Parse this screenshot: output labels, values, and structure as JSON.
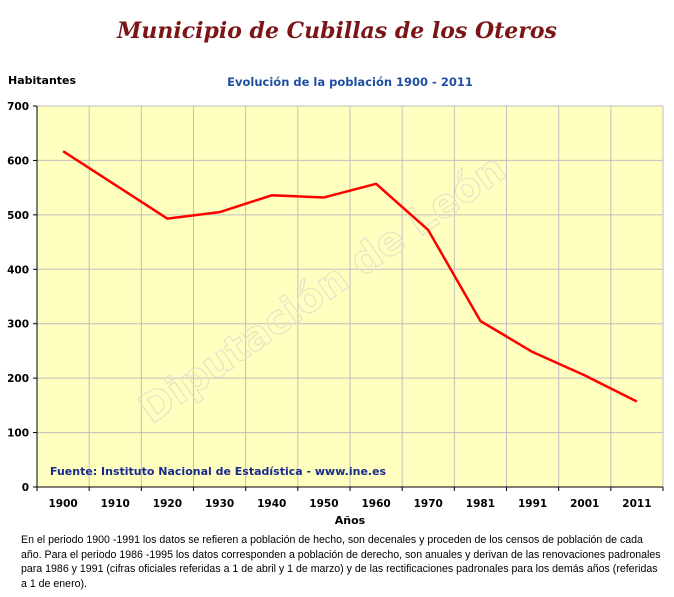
{
  "page": {
    "title": "Municipio de Cubillas de los Oteros",
    "footnote": "En el periodo 1900 -1991 los datos se refieren a población de hecho, son decenales y proceden de los censos de población de cada año. Para el periodo 1986 -1995 los datos corresponden a población de derecho, son anuales y derivan de las renovaciones padronales para 1986 y 1991 (cifras oficiales referidas a 1 de abril y 1 de marzo) y de las rectificaciones padronales para los demás años (referidas a 1 de enero)."
  },
  "chart_data": {
    "type": "line",
    "title": "Evolución de la población 1900 - 2011",
    "xlabel": "Años",
    "ylabel": "Habitantes",
    "categories": [
      "1900",
      "1910",
      "1920",
      "1930",
      "1940",
      "1950",
      "1960",
      "1970",
      "1981",
      "1991",
      "2001",
      "2011"
    ],
    "series": [
      {
        "values": [
          617,
          555,
          493,
          505,
          536,
          532,
          557,
          472,
          305,
          248,
          205,
          157
        ]
      }
    ],
    "ylim": [
      0,
      700
    ],
    "yticks": [
      0,
      100,
      200,
      300,
      400,
      500,
      600,
      700
    ],
    "grid": true,
    "source": "Fuente: Instituto Nacional de Estadística - www.ine.es",
    "watermark": "Diputación de León",
    "colors": {
      "line": "#ff0000",
      "plot_background": "#ffffc0",
      "grid": "#bfbfbf",
      "source_text": "#1a2a8c"
    }
  }
}
